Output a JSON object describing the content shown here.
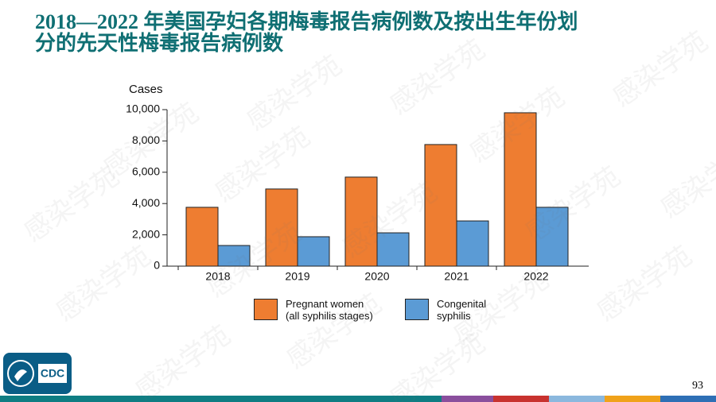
{
  "header": {
    "title": "2018—2022 年美国孕妇各期梅毒报告病例数及按出生年份划\n分的先天性梅毒报告病例数"
  },
  "chart_data": {
    "type": "bar",
    "y_label": "Cases",
    "categories": [
      "2018",
      "2019",
      "2020",
      "2021",
      "2022"
    ],
    "series": [
      {
        "name": "Pregnant women\n(all syphilis stages)",
        "color": "#ee7d31",
        "values": [
          3760,
          4930,
          5690,
          7770,
          9800
        ]
      },
      {
        "name": "Congenital\nsyphilis",
        "color": "#5b9bd5",
        "values": [
          1320,
          1880,
          2130,
          2890,
          3760
        ]
      }
    ],
    "ylim": [
      0,
      10000
    ],
    "yticks": [
      0,
      {
        "value": 2000,
        "label": "2,000"
      },
      {
        "value": 4000,
        "label": "4,000"
      },
      {
        "value": 6000,
        "label": "6,000"
      },
      {
        "value": 8000,
        "label": "8,000"
      },
      {
        "value": 10000,
        "label": "10,000"
      }
    ]
  },
  "footer": {
    "page_number": "93",
    "logo_text": "CDC",
    "watermark": "感染学苑"
  }
}
